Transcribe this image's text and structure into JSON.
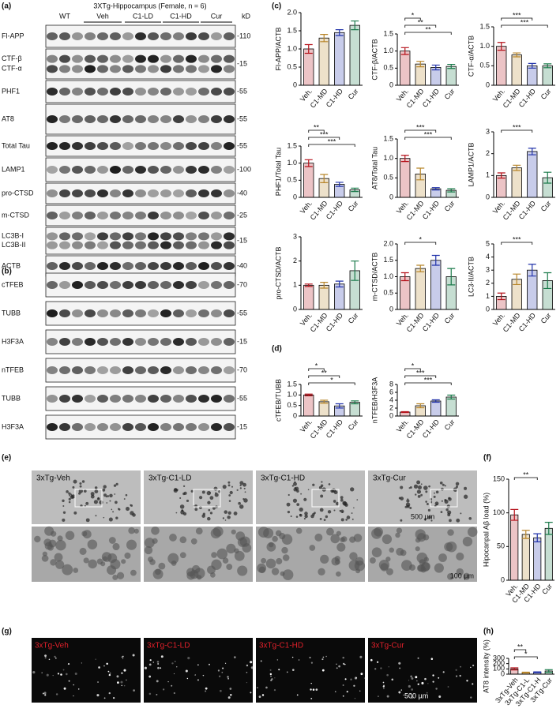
{
  "panel_labels": [
    "(a)",
    "(b)",
    "(c)",
    "(d)",
    "(e)",
    "(f)",
    "(g)",
    "(h)"
  ],
  "blots_a": {
    "title": "3XTg-Hippocampus (Female, n = 6)",
    "groups": [
      "WT",
      "Veh",
      "C1-LD",
      "C1-HD",
      "Cur"
    ],
    "unit": "kD",
    "rows": [
      {
        "labels": [
          "Fl-APP"
        ],
        "mw": "-110"
      },
      {
        "labels": [
          "CTF-β",
          "CTF-α"
        ],
        "mw": "-15"
      },
      {
        "labels": [
          "PHF1"
        ],
        "mw": "-55"
      },
      {
        "labels": [
          "AT8"
        ],
        "mw": "-55"
      },
      {
        "labels": [
          "Total Tau"
        ],
        "mw": "-55"
      },
      {
        "labels": [
          "LAMP1"
        ],
        "mw": "-100"
      },
      {
        "labels": [
          "pro-CTSD"
        ],
        "mw": "-40"
      },
      {
        "labels": [
          "m-CTSD"
        ],
        "mw": "-25"
      },
      {
        "labels": [
          "LC3B-I",
          "LC3B-II"
        ],
        "mw": "-15"
      },
      {
        "labels": [
          "ACTB"
        ],
        "mw": "-40"
      }
    ]
  },
  "blots_b": {
    "rows": [
      {
        "labels": [
          "cTFEB"
        ],
        "mw": "-70"
      },
      {
        "labels": [
          "TUBB"
        ],
        "mw": "-55"
      },
      {
        "labels": [
          "H3F3A"
        ],
        "mw": "-15"
      },
      {
        "labels": [
          "nTFEB"
        ],
        "mw": "-70"
      },
      {
        "labels": [
          "TUBB"
        ],
        "mw": "-55"
      },
      {
        "labels": [
          "H3F3A"
        ],
        "mw": "-15"
      }
    ]
  },
  "chart_data": [
    {
      "type": "bar",
      "y_label": "Fl-APP/ACTB",
      "categories": [
        "Veh.",
        "C1-MD",
        "C1-HD",
        "Cur"
      ],
      "values": [
        1.0,
        1.3,
        1.45,
        1.65
      ],
      "errors": [
        0.12,
        0.1,
        0.08,
        0.12
      ],
      "colors": [
        "#b5121b",
        "#b8862b",
        "#2233aa",
        "#1a7a4a"
      ],
      "ylim": [
        0,
        2
      ],
      "yticks": [
        0,
        0.5,
        {
          "value": 1,
          "label": "1.0"
        },
        1.5,
        {
          "value": 2,
          "label": "2.0"
        }
      ],
      "significance": []
    },
    {
      "type": "bar",
      "y_label": "CTF-β/ACTB",
      "categories": [
        "Veh.",
        "C1-MD",
        "C1-HD",
        "Cur"
      ],
      "values": [
        1.0,
        0.62,
        0.52,
        0.55
      ],
      "errors": [
        0.1,
        0.08,
        0.07,
        0.06
      ],
      "colors": [
        "#b5121b",
        "#b8862b",
        "#2233aa",
        "#1a7a4a"
      ],
      "ylim": [
        0,
        1.5
      ],
      "yticks": [
        0,
        0.5,
        {
          "value": 1,
          "label": "1.0"
        },
        1.5
      ],
      "significance": [
        {
          "pair": [
            "Veh.",
            "C1-MD"
          ],
          "label": "*"
        },
        {
          "pair": [
            "Veh.",
            "C1-HD"
          ],
          "label": "**"
        },
        {
          "pair": [
            "Veh.",
            "Cur"
          ],
          "label": "**"
        }
      ]
    },
    {
      "type": "bar",
      "y_label": "CTF-α/ACTB",
      "categories": [
        "Veh.",
        "C1-MD",
        "C1-HD",
        "Cur"
      ],
      "values": [
        1.0,
        0.78,
        0.5,
        0.5
      ],
      "errors": [
        0.1,
        0.05,
        0.06,
        0.05
      ],
      "colors": [
        "#b5121b",
        "#b8862b",
        "#2233aa",
        "#1a7a4a"
      ],
      "ylim": [
        0,
        1.5
      ],
      "yticks": [
        0,
        0.5,
        {
          "value": 1,
          "label": "1.0"
        },
        1.5
      ],
      "significance": [
        {
          "pair": [
            "Veh.",
            "C1-HD"
          ],
          "label": "***"
        },
        {
          "pair": [
            "Veh.",
            "Cur"
          ],
          "label": "***"
        }
      ]
    },
    {
      "type": "bar",
      "y_label": "PHF1/Total Tau",
      "categories": [
        "Veh.",
        "C1-MD",
        "C1-HD",
        "Cur"
      ],
      "values": [
        1.0,
        0.55,
        0.38,
        0.22
      ],
      "errors": [
        0.1,
        0.12,
        0.06,
        0.05
      ],
      "colors": [
        "#b5121b",
        "#b8862b",
        "#2233aa",
        "#1a7a4a"
      ],
      "ylim": [
        0,
        1.5
      ],
      "yticks": [
        0,
        0.5,
        {
          "value": 1,
          "label": "1.0"
        },
        1.5
      ],
      "significance": [
        {
          "pair": [
            "Veh.",
            "C1-MD"
          ],
          "label": "**"
        },
        {
          "pair": [
            "Veh.",
            "C1-HD"
          ],
          "label": "***"
        },
        {
          "pair": [
            "Veh.",
            "Cur"
          ],
          "label": "***"
        }
      ]
    },
    {
      "type": "bar",
      "y_label": "AT8/Total Tau",
      "categories": [
        "Veh.",
        "C1-MD",
        "C1-HD",
        "Cur"
      ],
      "values": [
        1.0,
        0.6,
        0.22,
        0.18
      ],
      "errors": [
        0.08,
        0.15,
        0.03,
        0.04
      ],
      "colors": [
        "#b5121b",
        "#b8862b",
        "#2233aa",
        "#1a7a4a"
      ],
      "ylim": [
        0,
        1.5
      ],
      "yticks": [
        0,
        0.5,
        {
          "value": 1,
          "label": "1.0"
        },
        1.5
      ],
      "significance": [
        {
          "pair": [
            "Veh.",
            "C1-HD"
          ],
          "label": "***"
        },
        {
          "pair": [
            "Veh.",
            "Cur"
          ],
          "label": "***"
        }
      ]
    },
    {
      "type": "bar",
      "y_label": "LAMP1/ACTB",
      "categories": [
        "Veh.",
        "C1-MD",
        "C1-HD",
        "Cur"
      ],
      "values": [
        1.0,
        1.35,
        2.1,
        0.9
      ],
      "errors": [
        0.12,
        0.12,
        0.15,
        0.25
      ],
      "colors": [
        "#b5121b",
        "#b8862b",
        "#2233aa",
        "#1a7a4a"
      ],
      "ylim": [
        0,
        3
      ],
      "yticks": [
        0,
        1,
        2,
        3
      ],
      "significance": [
        {
          "pair": [
            "Veh.",
            "C1-HD"
          ],
          "label": "***"
        }
      ]
    },
    {
      "type": "bar",
      "y_label": "pro-CTSD/ACTB",
      "categories": [
        "Veh.",
        "C1-MD",
        "C1-HD",
        "Cur"
      ],
      "values": [
        1.0,
        1.0,
        1.05,
        1.6
      ],
      "errors": [
        0.05,
        0.12,
        0.12,
        0.4
      ],
      "colors": [
        "#b5121b",
        "#b8862b",
        "#2233aa",
        "#1a7a4a"
      ],
      "ylim": [
        0,
        3
      ],
      "yticks": [
        0,
        1,
        2,
        3
      ],
      "significance": []
    },
    {
      "type": "bar",
      "y_label": "m-CTSD/ACTB",
      "categories": [
        "Veh.",
        "C1-MD",
        "C1-HD",
        "Cur"
      ],
      "values": [
        1.0,
        1.25,
        1.5,
        1.0
      ],
      "errors": [
        0.12,
        0.1,
        0.15,
        0.25
      ],
      "colors": [
        "#b5121b",
        "#b8862b",
        "#2233aa",
        "#1a7a4a"
      ],
      "ylim": [
        0,
        2
      ],
      "yticks": [
        0,
        0.5,
        {
          "value": 1,
          "label": "1.0"
        },
        1.5,
        {
          "value": 2,
          "label": "2.0"
        }
      ],
      "significance": [
        {
          "pair": [
            "Veh.",
            "C1-HD"
          ],
          "label": "*"
        }
      ]
    },
    {
      "type": "bar",
      "y_label": "LC3-II/ACTB",
      "categories": [
        "Veh.",
        "C1-MD",
        "C1-HD",
        "Cur"
      ],
      "values": [
        1.0,
        2.3,
        3.0,
        2.2
      ],
      "errors": [
        0.25,
        0.4,
        0.45,
        0.6
      ],
      "colors": [
        "#b5121b",
        "#b8862b",
        "#2233aa",
        "#1a7a4a"
      ],
      "ylim": [
        0,
        5
      ],
      "yticks": [
        0,
        1,
        2,
        3,
        4,
        5
      ],
      "significance": [
        {
          "pair": [
            "Veh.",
            "C1-HD"
          ],
          "label": "***"
        }
      ]
    },
    {
      "type": "bar",
      "y_label": "cTFEB/TUBB",
      "categories": [
        "Veh.",
        "C1-MD",
        "C1-HD",
        "Cur"
      ],
      "values": [
        1.0,
        0.68,
        0.48,
        0.65
      ],
      "errors": [
        0.04,
        0.07,
        0.1,
        0.07
      ],
      "colors": [
        "#b5121b",
        "#b8862b",
        "#2233aa",
        "#1a7a4a"
      ],
      "ylim": [
        0,
        1.5
      ],
      "yticks": [
        0,
        0.5,
        {
          "value": 1,
          "label": "1.0"
        },
        1.5
      ],
      "significance": [
        {
          "pair": [
            "Veh.",
            "C1-MD"
          ],
          "label": "*"
        },
        {
          "pair": [
            "Veh.",
            "C1-HD"
          ],
          "label": "**"
        },
        {
          "pair": [
            "Veh.",
            "Cur"
          ],
          "label": "*"
        }
      ]
    },
    {
      "type": "bar",
      "y_label": "nTFEB/H3F3A",
      "categories": [
        "Veh.",
        "C1-MD",
        "C1-HD",
        "Cur"
      ],
      "values": [
        1.0,
        2.6,
        3.8,
        4.8
      ],
      "errors": [
        0.1,
        0.5,
        0.3,
        0.5
      ],
      "colors": [
        "#b5121b",
        "#b8862b",
        "#2233aa",
        "#1a7a4a"
      ],
      "ylim": [
        0,
        8
      ],
      "yticks": [
        0,
        2,
        4,
        6,
        8
      ],
      "significance": [
        {
          "pair": [
            "Veh.",
            "C1-MD"
          ],
          "label": "*"
        },
        {
          "pair": [
            "Veh.",
            "C1-HD"
          ],
          "label": "***"
        },
        {
          "pair": [
            "Veh.",
            "Cur"
          ],
          "label": "***"
        }
      ]
    },
    {
      "type": "bar",
      "y_label": "Hipocanpal Aβ load (%)",
      "categories": [
        "Veh.",
        "C1-MD",
        "C1-HD",
        "Cur"
      ],
      "values": [
        97,
        68,
        63,
        77
      ],
      "errors": [
        8,
        6,
        6,
        9
      ],
      "colors": [
        "#b5121b",
        "#b8862b",
        "#2233aa",
        "#1a7a4a"
      ],
      "ylim": [
        0,
        150
      ],
      "yticks": [
        0,
        50,
        100,
        150
      ],
      "significance": [
        {
          "pair": [
            "Veh.",
            "C1-HD"
          ],
          "label": "**"
        }
      ]
    },
    {
      "type": "bar",
      "y_label": "AT8 intensity (%)",
      "categories": [
        "3xTg-Veh",
        "3xTg-C1-L",
        "3xTg-C1-H",
        "3xTg-Cur"
      ],
      "values": [
        100,
        30,
        35,
        60
      ],
      "errors": [
        20,
        8,
        8,
        25
      ],
      "colors": [
        "#b5121b",
        "#b8862b",
        "#2233aa",
        "#1a7a4a"
      ],
      "ylim": [
        0,
        300
      ],
      "yticks": [
        0,
        100,
        200,
        300
      ],
      "significance": [
        {
          "pair": [
            "3xTg-Veh",
            "3xTg-C1-L"
          ],
          "label": "**"
        },
        {
          "pair": [
            "3xTg-Veh",
            "3xTg-C1-H"
          ],
          "label": "*"
        }
      ]
    }
  ],
  "micrographs_e": {
    "labels": [
      "3xTg-Veh",
      "3xTg-C1-LD",
      "3xTg-C1-HD",
      "3xTg-Cur"
    ],
    "scale_main": "500 µm",
    "scale_zoom": "100 µm"
  },
  "micrographs_g": {
    "labels": [
      "3xTg-Veh",
      "3xTg-C1-LD",
      "3xTg-C1-HD",
      "3xTg-Cur"
    ],
    "scale": "500 µm"
  }
}
